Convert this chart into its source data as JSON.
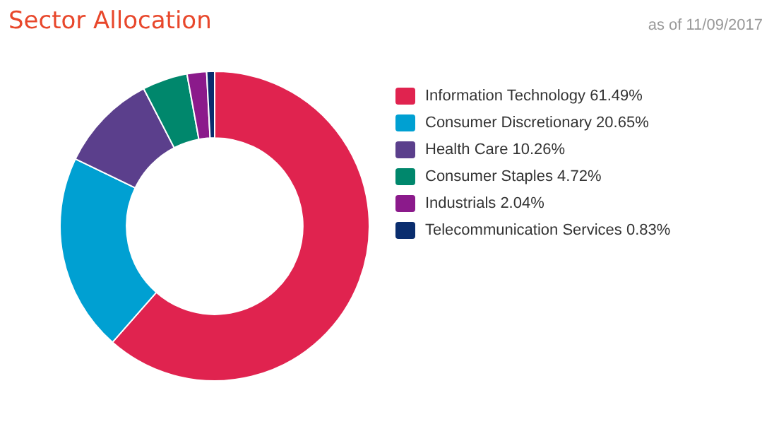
{
  "chart_data": {
    "type": "donut",
    "title": "Sector Allocation",
    "subtitle": "as of 11/09/2017",
    "categories": [
      "Information Technology 61.49%",
      "Consumer Discretionary 20.65%",
      "Health Care 10.26%",
      "Consumer Staples 4.72%",
      "Industrials 2.04%",
      "Telecommunication Services 0.83%"
    ],
    "values": [
      61.49,
      20.65,
      10.26,
      4.72,
      2.04,
      0.83
    ],
    "colors": [
      "#e0234f",
      "#00a0d2",
      "#5b3f8c",
      "#00876c",
      "#8b1a8b",
      "#0a2d6e"
    ],
    "legend": "right"
  }
}
